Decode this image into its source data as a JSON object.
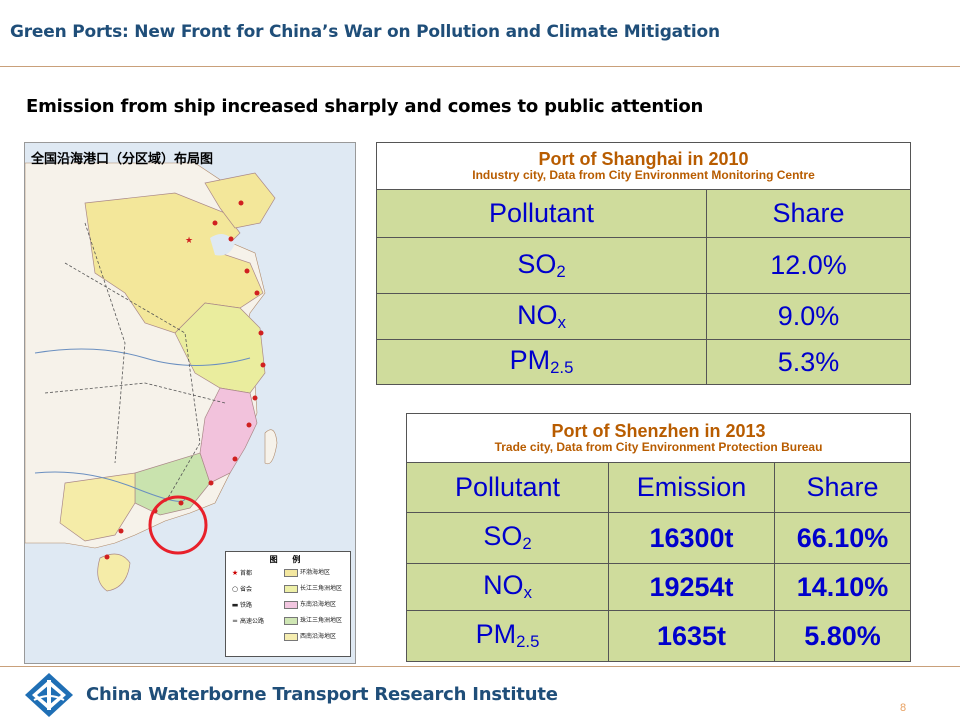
{
  "header": {
    "title": "Green Ports: New Front for China’s War on Pollution and Climate Mitigation"
  },
  "subtitle": "Emission from ship increased sharply and comes to public attention",
  "map": {
    "title": "全国沿海港口（分区域）布局图",
    "legend": {
      "title": "图 例",
      "items": [
        {
          "symbol": "★",
          "label": "首都",
          "swatch": "",
          "swatch_label": "环渤海地区",
          "swatch_color": "#f3e7a0"
        },
        {
          "symbol": "○",
          "label": "省会",
          "swatch": "",
          "swatch_label": "长江三角洲地区",
          "swatch_color": "#eef0a8"
        },
        {
          "symbol": "▬",
          "label": "铁路",
          "swatch": "",
          "swatch_label": "东南沿海地区",
          "swatch_color": "#f2c6e0"
        },
        {
          "symbol": "═",
          "label": "高速公路",
          "swatch": "",
          "swatch_label": "珠江三角洲地区",
          "swatch_color": "#cfe6b4"
        },
        {
          "symbol": "",
          "label": "",
          "swatch": "",
          "swatch_label": "西南沿海地区",
          "swatch_color": "#f5edb0"
        }
      ]
    }
  },
  "shanghai": {
    "title": "Port of Shanghai in 2010",
    "source": "Industry city, Data from City Environment Monitoring Centre",
    "headers": [
      "Pollutant",
      "Share"
    ],
    "rows": [
      {
        "pollutant": "SO",
        "sub": "2",
        "share": "12.0%"
      },
      {
        "pollutant": "NO",
        "sub": "x",
        "share": "9.0%"
      },
      {
        "pollutant": "PM",
        "sub": "2.5",
        "share": "5.3%"
      }
    ]
  },
  "shenzhen": {
    "title": "Port of Shenzhen in 2013",
    "source": "Trade city, Data from City Environment Protection Bureau",
    "headers": [
      "Pollutant",
      "Emission",
      "Share"
    ],
    "rows": [
      {
        "pollutant": "SO",
        "sub": "2",
        "emission": "16300t",
        "share": "66.10%"
      },
      {
        "pollutant": "NO",
        "sub": "x",
        "emission": "19254t",
        "share": "14.10%"
      },
      {
        "pollutant": "PM",
        "sub": "2.5",
        "emission": "1635t",
        "share": "5.80%"
      }
    ]
  },
  "footer": {
    "org": "China Waterborne Transport Research Institute",
    "page": "8"
  },
  "colors": {
    "accent": "#1f4e79",
    "cell_bg": "#cfdc9c",
    "cell_text": "#0000cc",
    "table_title": "#b85c00",
    "rule": "#c9a07a",
    "highlight_circle": "#e8202a"
  }
}
